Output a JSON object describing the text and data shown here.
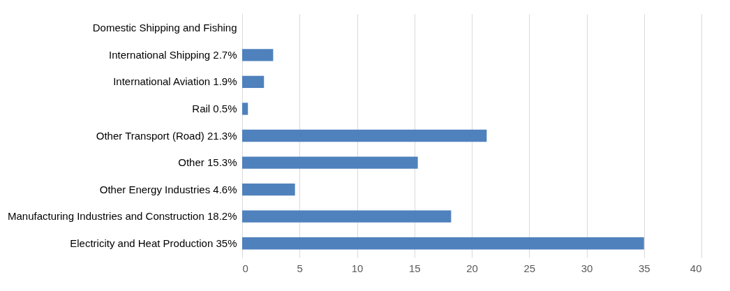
{
  "chart_data": {
    "type": "bar",
    "orientation": "horizontal",
    "categories": [
      "Domestic Shipping and Fishing",
      "International Shipping 2.7%",
      "International Aviation 1.9%",
      "Rail 0.5%",
      "Other Transport (Road) 21.3%",
      "Other 15.3%",
      "Other Energy Industries 4.6%",
      "Manufacturing Industries and Construction 18.2%",
      "Electricity and Heat Production 35%"
    ],
    "values": [
      null,
      2.7,
      1.9,
      0.5,
      21.3,
      15.3,
      4.6,
      18.2,
      35
    ],
    "color": "#4f81bd",
    "xlim": [
      0,
      40
    ],
    "xticks": [
      0,
      5,
      10,
      15,
      20,
      25,
      30,
      35,
      40
    ],
    "grid": "x"
  }
}
